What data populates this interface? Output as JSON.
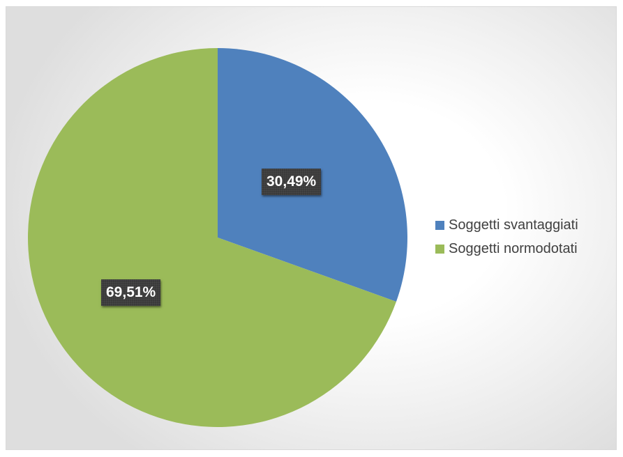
{
  "chart_data": {
    "type": "pie",
    "categories": [
      "Soggetti svantaggiati",
      "Soggetti normodotati"
    ],
    "values": [
      30.49,
      69.51
    ],
    "data_labels": [
      "30,49%",
      "69,51%"
    ],
    "colors": [
      "#4f81bd",
      "#9bbb59"
    ],
    "legend_position": "right",
    "title": ""
  }
}
